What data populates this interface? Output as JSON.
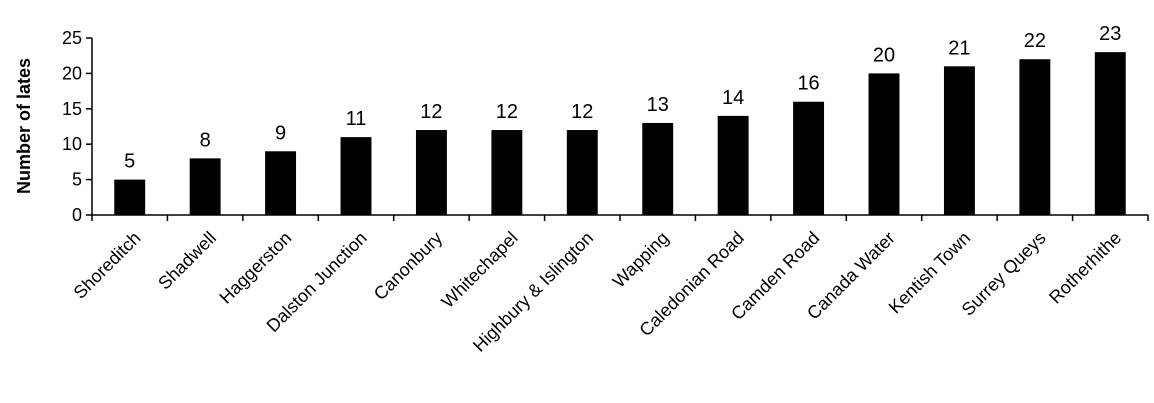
{
  "chart_data": {
    "type": "bar",
    "title": "",
    "xlabel": "",
    "ylabel": "Number of lates",
    "categories": [
      "Shoreditch",
      "Shadwell",
      "Haggerston",
      "Dalston Junction",
      "Canonbury",
      "Whitechapel",
      "Highbury & Islington",
      "Wapping",
      "Caledonian Road",
      "Camden Road",
      "Canada Water",
      "Kentish Town",
      "Surrey Queys",
      "Rotherhithe"
    ],
    "values": [
      5,
      8,
      9,
      11,
      12,
      12,
      12,
      13,
      14,
      16,
      20,
      21,
      22,
      23
    ],
    "ylim": [
      0,
      25
    ],
    "yticks": [
      0,
      5,
      10,
      15,
      20,
      25
    ],
    "grid": false,
    "legend": "none",
    "bar_color": "#000000"
  }
}
